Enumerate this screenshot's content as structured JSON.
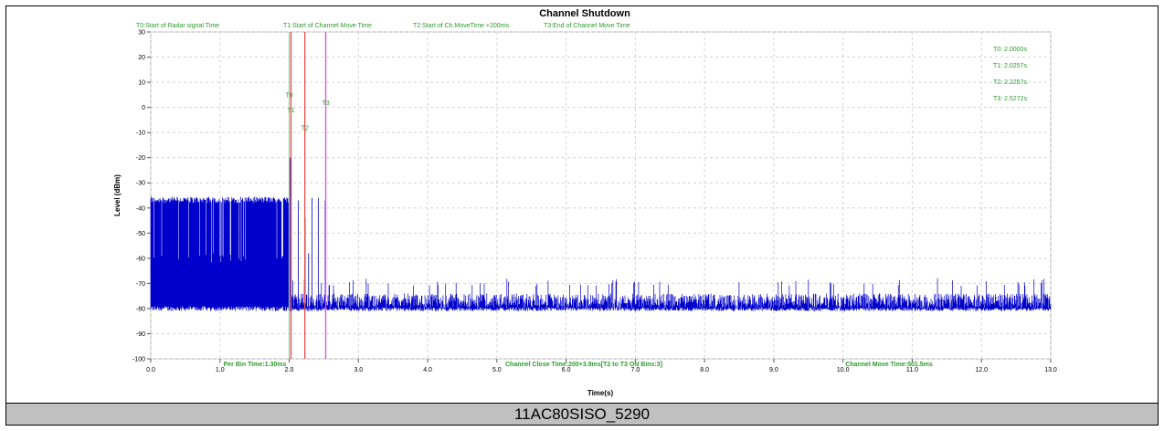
{
  "caption": "11AC80SISO_5290",
  "chart_data": {
    "type": "line",
    "title": "Channel Shutdown",
    "xlabel": "Time(s)",
    "ylabel": "Level (dBm)",
    "xlim": [
      0,
      13
    ],
    "ylim": [
      -100,
      30
    ],
    "x_ticks": [
      "0.0",
      "1.0",
      "2.0",
      "3.0",
      "4.0",
      "5.0",
      "6.0",
      "7.0",
      "8.0",
      "9.0",
      "10.0",
      "11.0",
      "12.0",
      "13.0"
    ],
    "y_ticks": [
      "30",
      "20",
      "10",
      "0",
      "-10",
      "-20",
      "-30",
      "-40",
      "-50",
      "-60",
      "-70",
      "-80",
      "-90",
      "-100"
    ],
    "grid": true,
    "top_legend": [
      "T0:Start of Radar signal Time",
      "T1:Start of Channel Move Time",
      "T2:Start of Ch.MoveTime +200ms",
      "T3:End of Channel Move Time"
    ],
    "markers": [
      {
        "name": "T0",
        "x": 2.0,
        "color": "#9acd9a",
        "label_y": 4,
        "readout": "T0: 2.0000s"
      },
      {
        "name": "T1",
        "x": 2.0257,
        "color": "#e05050",
        "label_y": -2,
        "readout": "T1: 2.0257s"
      },
      {
        "name": "T2",
        "x": 2.2257,
        "color": "#e05050",
        "label_y": -9,
        "readout": "T2: 2.2257s"
      },
      {
        "name": "T3",
        "x": 2.5272,
        "color": "#ee44ee",
        "label_y": 1,
        "readout": "T3: 2.5272s"
      }
    ],
    "bottom_annotations": [
      "Per Bin Time:1.30ms",
      "Channel Close Time:200+3.9ms[T2 to T3 ON Bins:3]",
      "Channel Move Time:501.5ms"
    ],
    "series": [
      {
        "color": "#0000cc",
        "segments": [
          {
            "x_from": 0.0,
            "x_to": 2.03,
            "band_high": -38,
            "band_low": -81,
            "spike": -20
          },
          {
            "x_from": 2.03,
            "x_to": 13.0,
            "band_high": -68,
            "band_low": -81,
            "spike": -36
          }
        ]
      }
    ]
  }
}
